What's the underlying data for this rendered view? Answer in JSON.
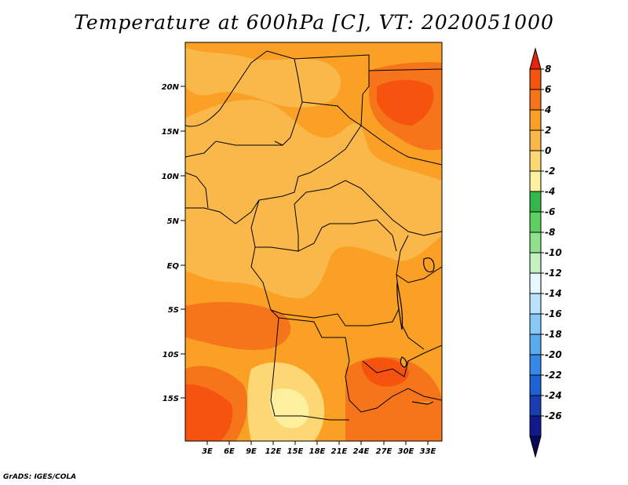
{
  "title": "Temperature at 600hPa [C], VT: 2020051000",
  "footer": "GrADS: IGES/COLA",
  "map": {
    "lon_labels": [
      "3E",
      "6E",
      "9E",
      "12E",
      "15E",
      "18E",
      "21E",
      "24E",
      "27E",
      "30E",
      "33E"
    ],
    "lat_labels": [
      "20N",
      "15N",
      "10N",
      "5N",
      "EQ",
      "5S",
      "10S",
      "15S"
    ]
  },
  "colorbar": {
    "levels": [
      "8",
      "6",
      "4",
      "2",
      "0",
      "-2",
      "-4",
      "-6",
      "-8",
      "-10",
      "-12",
      "-14",
      "-16",
      "-18",
      "-20",
      "-22",
      "-24",
      "-26"
    ],
    "colors": [
      "#e8250a",
      "#f6530e",
      "#f7751a",
      "#f9a025",
      "#fbb84a",
      "#fcd774",
      "#fcef9e",
      "#33b849",
      "#5ed062",
      "#8fe28b",
      "#c4f1c0",
      "#e6f7ff",
      "#b6e2fb",
      "#87c8f6",
      "#5aaaf0",
      "#3688e6",
      "#1a62d5",
      "#1a3db5",
      "#101a8e",
      "#0a0a5a"
    ]
  }
}
